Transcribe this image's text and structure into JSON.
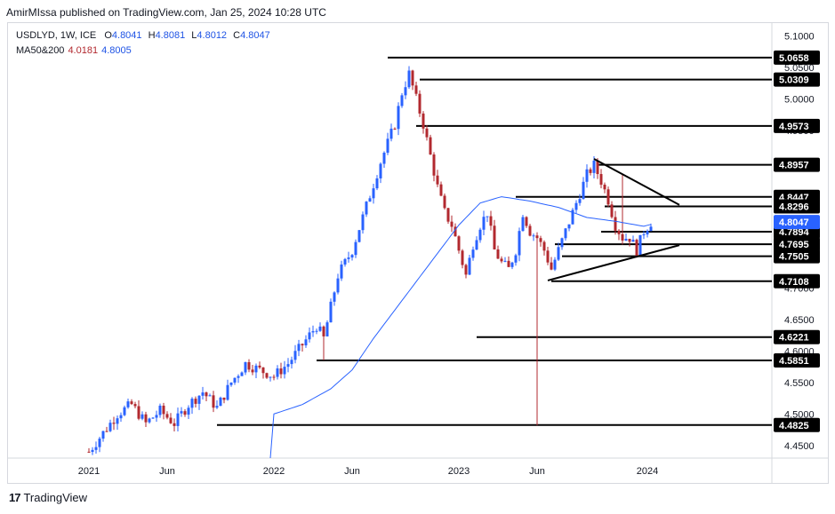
{
  "attribution": "AmirMIssa published on TradingView.com, Jan 25, 2024 10:28 UTC",
  "symbol_line": {
    "symbol": "USDLYD, 1W, ICE",
    "o_label": "O",
    "o": "4.8041",
    "h_label": "H",
    "h": "4.8081",
    "l_label": "L",
    "l": "4.8012",
    "c_label": "C",
    "c": "4.8047"
  },
  "ma_line": {
    "label": "MA50&200",
    "ma1": "4.0181",
    "ma2": "4.8005"
  },
  "brand": {
    "logo": "17",
    "name": "TradingView"
  },
  "colors": {
    "up": "#2962ff",
    "down": "#b2292f",
    "ma": "#2962ff",
    "line": "#000000",
    "badge_bg": "#000000",
    "current_bg": "#2962ff"
  },
  "chart_data": {
    "type": "candlestick",
    "title": "USDLYD, 1W, ICE",
    "y_ticks": [
      "5.1000",
      "5.0500",
      "5.0000",
      "4.9500",
      "4.9000",
      "4.8500",
      "4.8000",
      "4.7500",
      "4.7000",
      "4.6500",
      "4.6000",
      "4.5500",
      "4.5000",
      "4.4500"
    ],
    "ylim": [
      4.43,
      5.115
    ],
    "x_ticks": [
      "2021",
      "Jun",
      "2022",
      "Jun",
      "2023",
      "Jun",
      "2024"
    ],
    "x_tick_weeks": [
      0,
      22,
      52,
      74,
      104,
      126,
      157
    ],
    "n_weeks": 177,
    "level_labels": [
      "5.0658",
      "5.0309",
      "4.9573",
      "4.8957",
      "4.8447",
      "4.8296",
      "4.7894",
      "4.7695",
      "4.7505",
      "4.7108",
      "4.6221",
      "4.5851",
      "4.4825"
    ],
    "level_values": [
      5.0658,
      5.0309,
      4.9573,
      4.8957,
      4.8447,
      4.8296,
      4.7894,
      4.7695,
      4.7505,
      4.7108,
      4.6221,
      4.5851,
      4.4825
    ],
    "level_start_weeks": [
      84,
      93,
      92,
      143,
      120,
      145,
      144,
      131,
      133,
      130,
      109,
      64,
      36
    ],
    "current_price": "4.8047",
    "current_value": 4.8047,
    "trendlines": [
      {
        "from": [
          142,
          4.905
        ],
        "to": [
          166,
          4.832
        ]
      },
      {
        "from": [
          129,
          4.712
        ],
        "to": [
          166,
          4.768
        ]
      }
    ],
    "ma200_anchors": [
      [
        51,
        4.43
      ],
      [
        52,
        4.5
      ],
      [
        60,
        4.515
      ],
      [
        68,
        4.54
      ],
      [
        74,
        4.57
      ],
      [
        80,
        4.62
      ],
      [
        88,
        4.68
      ],
      [
        96,
        4.74
      ],
      [
        104,
        4.8
      ],
      [
        110,
        4.835
      ],
      [
        116,
        4.845
      ],
      [
        124,
        4.838
      ],
      [
        132,
        4.828
      ],
      [
        140,
        4.812
      ],
      [
        148,
        4.806
      ],
      [
        152,
        4.802
      ],
      [
        156,
        4.798
      ],
      [
        158,
        4.801
      ]
    ],
    "price_anchors": [
      [
        0,
        4.44
      ],
      [
        4,
        4.47
      ],
      [
        8,
        4.5
      ],
      [
        12,
        4.515
      ],
      [
        16,
        4.485
      ],
      [
        20,
        4.505
      ],
      [
        24,
        4.485
      ],
      [
        28,
        4.515
      ],
      [
        32,
        4.535
      ],
      [
        36,
        4.51
      ],
      [
        40,
        4.55
      ],
      [
        44,
        4.58
      ],
      [
        48,
        4.57
      ],
      [
        52,
        4.56
      ],
      [
        56,
        4.58
      ],
      [
        60,
        4.61
      ],
      [
        64,
        4.64
      ],
      [
        66,
        4.62
      ],
      [
        70,
        4.72
      ],
      [
        74,
        4.76
      ],
      [
        78,
        4.83
      ],
      [
        82,
        4.9
      ],
      [
        86,
        4.96
      ],
      [
        88,
        5.01
      ],
      [
        90,
        5.04
      ],
      [
        92,
        5.0
      ],
      [
        94,
        4.96
      ],
      [
        96,
        4.91
      ],
      [
        98,
        4.86
      ],
      [
        100,
        4.82
      ],
      [
        102,
        4.8
      ],
      [
        104,
        4.76
      ],
      [
        106,
        4.72
      ],
      [
        108,
        4.77
      ],
      [
        110,
        4.8
      ],
      [
        112,
        4.82
      ],
      [
        114,
        4.76
      ],
      [
        116,
        4.74
      ],
      [
        118,
        4.73
      ],
      [
        120,
        4.76
      ],
      [
        122,
        4.82
      ],
      [
        124,
        4.79
      ],
      [
        126,
        4.78
      ],
      [
        128,
        4.76
      ],
      [
        130,
        4.73
      ],
      [
        132,
        4.76
      ],
      [
        134,
        4.79
      ],
      [
        136,
        4.82
      ],
      [
        138,
        4.85
      ],
      [
        140,
        4.88
      ],
      [
        142,
        4.895
      ],
      [
        144,
        4.87
      ],
      [
        146,
        4.84
      ],
      [
        148,
        4.8
      ],
      [
        150,
        4.78
      ],
      [
        152,
        4.78
      ],
      [
        154,
        4.76
      ],
      [
        156,
        4.79
      ],
      [
        158,
        4.8047
      ]
    ],
    "spikes": [
      {
        "week": 66,
        "low": 4.585
      },
      {
        "week": 126,
        "low": 4.482
      },
      {
        "week": 150,
        "high": 4.88
      }
    ]
  }
}
